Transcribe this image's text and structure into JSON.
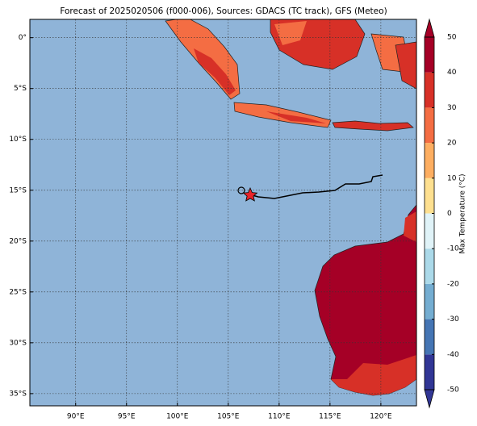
{
  "map": {
    "title": "Forecast of 2025020506 (f000-006), Sources: GDACS (TC track), GFS (Meteo)",
    "lon_ticks": [
      {
        "value": 90,
        "label": "90°E"
      },
      {
        "value": 95,
        "label": "95°E"
      },
      {
        "value": 100,
        "label": "100°E"
      },
      {
        "value": 105,
        "label": "105°E"
      },
      {
        "value": 110,
        "label": "110°E"
      },
      {
        "value": 115,
        "label": "115°E"
      },
      {
        "value": 120,
        "label": "120°E"
      }
    ],
    "lat_ticks": [
      {
        "value": 0,
        "label": "0°"
      },
      {
        "value": -5,
        "label": "5°S"
      },
      {
        "value": -10,
        "label": "10°S"
      },
      {
        "value": -15,
        "label": "15°S"
      },
      {
        "value": -20,
        "label": "20°S"
      },
      {
        "value": -25,
        "label": "25°S"
      },
      {
        "value": -30,
        "label": "30°S"
      },
      {
        "value": -35,
        "label": "35°S"
      }
    ],
    "lonlim": [
      85.5,
      123.5
    ],
    "latlim": [
      1.8,
      -36.2
    ],
    "colorbar": {
      "label": "Max Temperature (°C)",
      "lim": [
        -50,
        50
      ],
      "ticks": [
        -50,
        -40,
        -30,
        -20,
        -10,
        0,
        10,
        20,
        30,
        40,
        50
      ],
      "colors": [
        "#313695",
        "#4575b4",
        "#74add1",
        "#abd9e9",
        "#e0f3f8",
        "#fee090",
        "#fdae61",
        "#f46d43",
        "#d73027",
        "#a50026"
      ]
    }
  }
}
